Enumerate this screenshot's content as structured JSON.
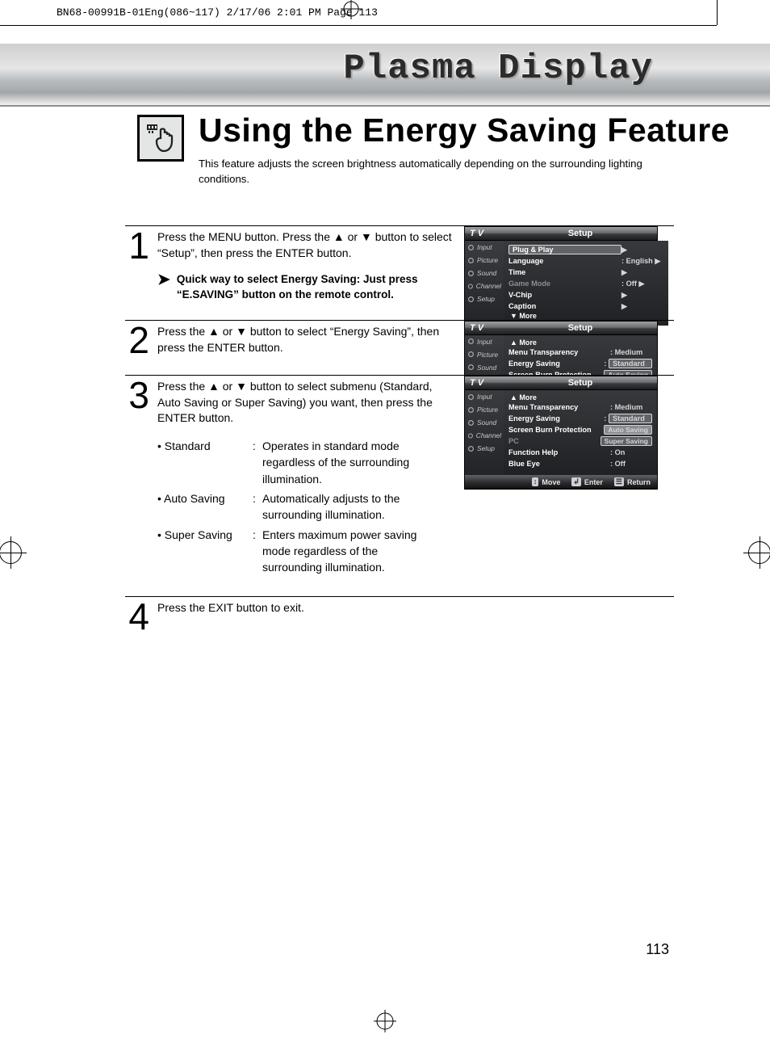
{
  "print_header": "BN68-00991B-01Eng(086~117)  2/17/06  2:01 PM  Page 113",
  "plasma": "Plasma Display",
  "title": "Using the Energy Saving Feature",
  "intro": "This feature adjusts the screen brightness automatically depending on the surrounding lighting conditions.",
  "page_number": "113",
  "steps": [
    {
      "num": "1",
      "text_pre": "Press the MENU button. Press the ",
      "text_mid": " or ",
      "text_post": " button to select “Setup”, then press the ENTER button.",
      "tip": "Quick way to select Energy Saving: Just press “E.SAVING” button on the remote control.",
      "screenshot": "setup1"
    },
    {
      "num": "2",
      "text_pre": "Press the ",
      "text_mid": " or ",
      "text_post": " button to select “Energy Saving”, then press the ENTER button.",
      "screenshot": "setup2"
    },
    {
      "num": "3",
      "text_pre": "Press the ",
      "text_mid": " or ",
      "text_post": " button to select submenu (Standard, Auto Saving or Super Saving) you want, then press the ENTER button.",
      "bullets": [
        {
          "lbl": "• Standard",
          "desc": "Operates in standard mode regardless of the surrounding illumination."
        },
        {
          "lbl": "• Auto Saving",
          "desc": "Automatically adjusts to the surrounding illumination."
        },
        {
          "lbl": "• Super Saving",
          "desc": "Enters maximum power saving mode regardless of the surrounding illumination."
        }
      ],
      "screenshot": "setup3"
    },
    {
      "num": "4",
      "text_plain": "Press the EXIT button to exit."
    }
  ],
  "osd_tabs": [
    "Input",
    "Picture",
    "Sound",
    "Channel",
    "Setup"
  ],
  "osd_foot": {
    "move": "Move",
    "enter": "Enter",
    "return": "Return"
  },
  "osd": {
    "tv": "T V",
    "setup": "Setup",
    "setup1_rows": [
      {
        "label": "Plug & Play",
        "val": "",
        "hl": true
      },
      {
        "label": "Language",
        "val": ": English"
      },
      {
        "label": "Time",
        "val": ""
      },
      {
        "label": "Game Mode",
        "val": ": Off",
        "dim": true
      },
      {
        "label": "V-Chip",
        "val": ""
      },
      {
        "label": "Caption",
        "val": ""
      }
    ],
    "more_down": "▼ More",
    "more_up": "▲ More",
    "setup2_rows": [
      {
        "label": "Menu Transparency",
        "val": ": Medium"
      },
      {
        "label": "Energy Saving",
        "val": "Standard",
        "box": true
      },
      {
        "label": "Screen Burn Protection",
        "val": "Auto Saving",
        "opt": true
      },
      {
        "label": "PC",
        "val": "Super Saving",
        "dim": true,
        "opt": true
      },
      {
        "label": "Function Help",
        "val": ": On"
      },
      {
        "label": "Blue Eye",
        "val": ": Off"
      }
    ],
    "setup3_rows": [
      {
        "label": "Menu Transparency",
        "val": ": Medium"
      },
      {
        "label": "Energy Saving",
        "val": "Standard",
        "opt": true,
        "box": true
      },
      {
        "label": "Screen Burn Protection",
        "val": "Auto Saving",
        "hl": true,
        "opt": true
      },
      {
        "label": "PC",
        "val": "Super Saving",
        "dim": true,
        "opt": true
      },
      {
        "label": "Function Help",
        "val": ": On"
      },
      {
        "label": "Blue Eye",
        "val": ": Off"
      }
    ]
  },
  "colors": {
    "text": "#000000",
    "osd_bg": "#2a2c2f",
    "osd_text": "#ffffff",
    "osd_dim": "#8c8d90"
  }
}
